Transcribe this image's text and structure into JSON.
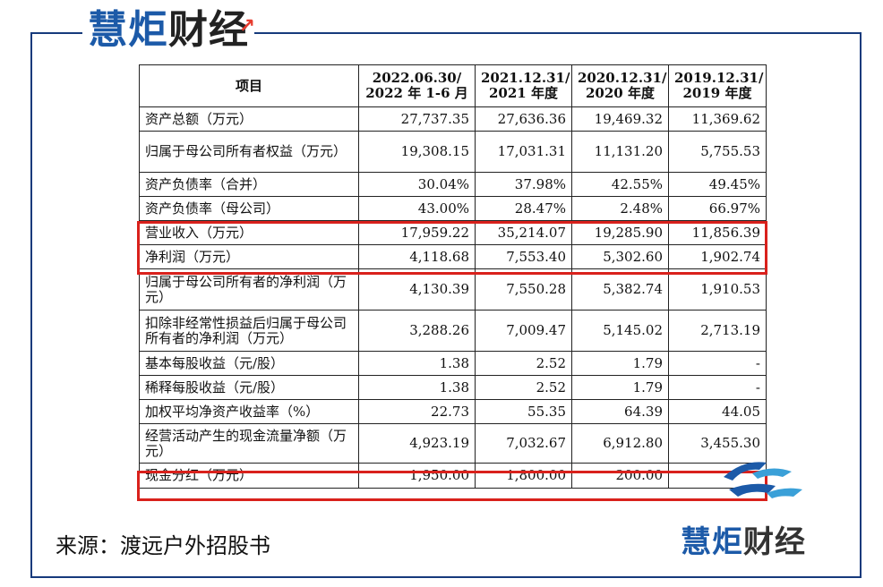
{
  "brand": {
    "part1": "慧炬",
    "part2": "财经"
  },
  "source": "来源：渡远户外招股书",
  "table": {
    "header": {
      "item": "项目",
      "cols": [
        [
          "2022.06.30/",
          "2022 年 1-6 月"
        ],
        [
          "2021.12.31/",
          "2021 年度"
        ],
        [
          "2020.12.31/",
          "2020 年度"
        ],
        [
          "2019.12.31/",
          "2019 年度"
        ]
      ]
    },
    "rows": [
      {
        "label": "资产总额（万元）",
        "values": [
          "27,737.35",
          "27,636.36",
          "19,469.32",
          "11,369.62"
        ]
      },
      {
        "label": "归属于母公司所有者权益（万元）",
        "values": [
          "19,308.15",
          "17,031.31",
          "11,131.20",
          "5,755.53"
        ]
      },
      {
        "label": "资产负债率（合并）",
        "values": [
          "30.04%",
          "37.98%",
          "42.55%",
          "49.45%"
        ]
      },
      {
        "label": "资产负债率（母公司）",
        "values": [
          "43.00%",
          "28.47%",
          "2.48%",
          "66.97%"
        ]
      },
      {
        "label": "营业收入（万元）",
        "values": [
          "17,959.22",
          "35,214.07",
          "19,285.90",
          "11,856.39"
        ]
      },
      {
        "label": "净利润（万元）",
        "values": [
          "4,118.68",
          "7,553.40",
          "5,302.60",
          "1,902.74"
        ]
      },
      {
        "label": "归属于母公司所有者的净利润（万元）",
        "values": [
          "4,130.39",
          "7,550.28",
          "5,382.74",
          "1,910.53"
        ]
      },
      {
        "label": "扣除非经常性损益后归属于母公司所有者的净利润（万元）",
        "values": [
          "3,288.26",
          "7,009.47",
          "5,145.02",
          "2,713.19"
        ]
      },
      {
        "label": "基本每股收益（元/股）",
        "values": [
          "1.38",
          "2.52",
          "1.79",
          "-"
        ]
      },
      {
        "label": "稀释每股收益（元/股）",
        "values": [
          "1.38",
          "2.52",
          "1.79",
          "-"
        ]
      },
      {
        "label": "加权平均净资产收益率（%）",
        "values": [
          "22.73",
          "55.35",
          "64.39",
          "44.05"
        ]
      },
      {
        "label": "经营活动产生的现金流量净额（万元）",
        "values": [
          "4,923.19",
          "7,032.67",
          "6,912.80",
          "3,455.30"
        ]
      },
      {
        "label": "现金分红（万元）",
        "values": [
          "1,950.00",
          "1,800.00",
          "200.00",
          "-"
        ]
      }
    ]
  },
  "colors": {
    "frame": "#163a7c",
    "brand_blue": "#1c5aa8",
    "highlight": "#d9211c"
  }
}
